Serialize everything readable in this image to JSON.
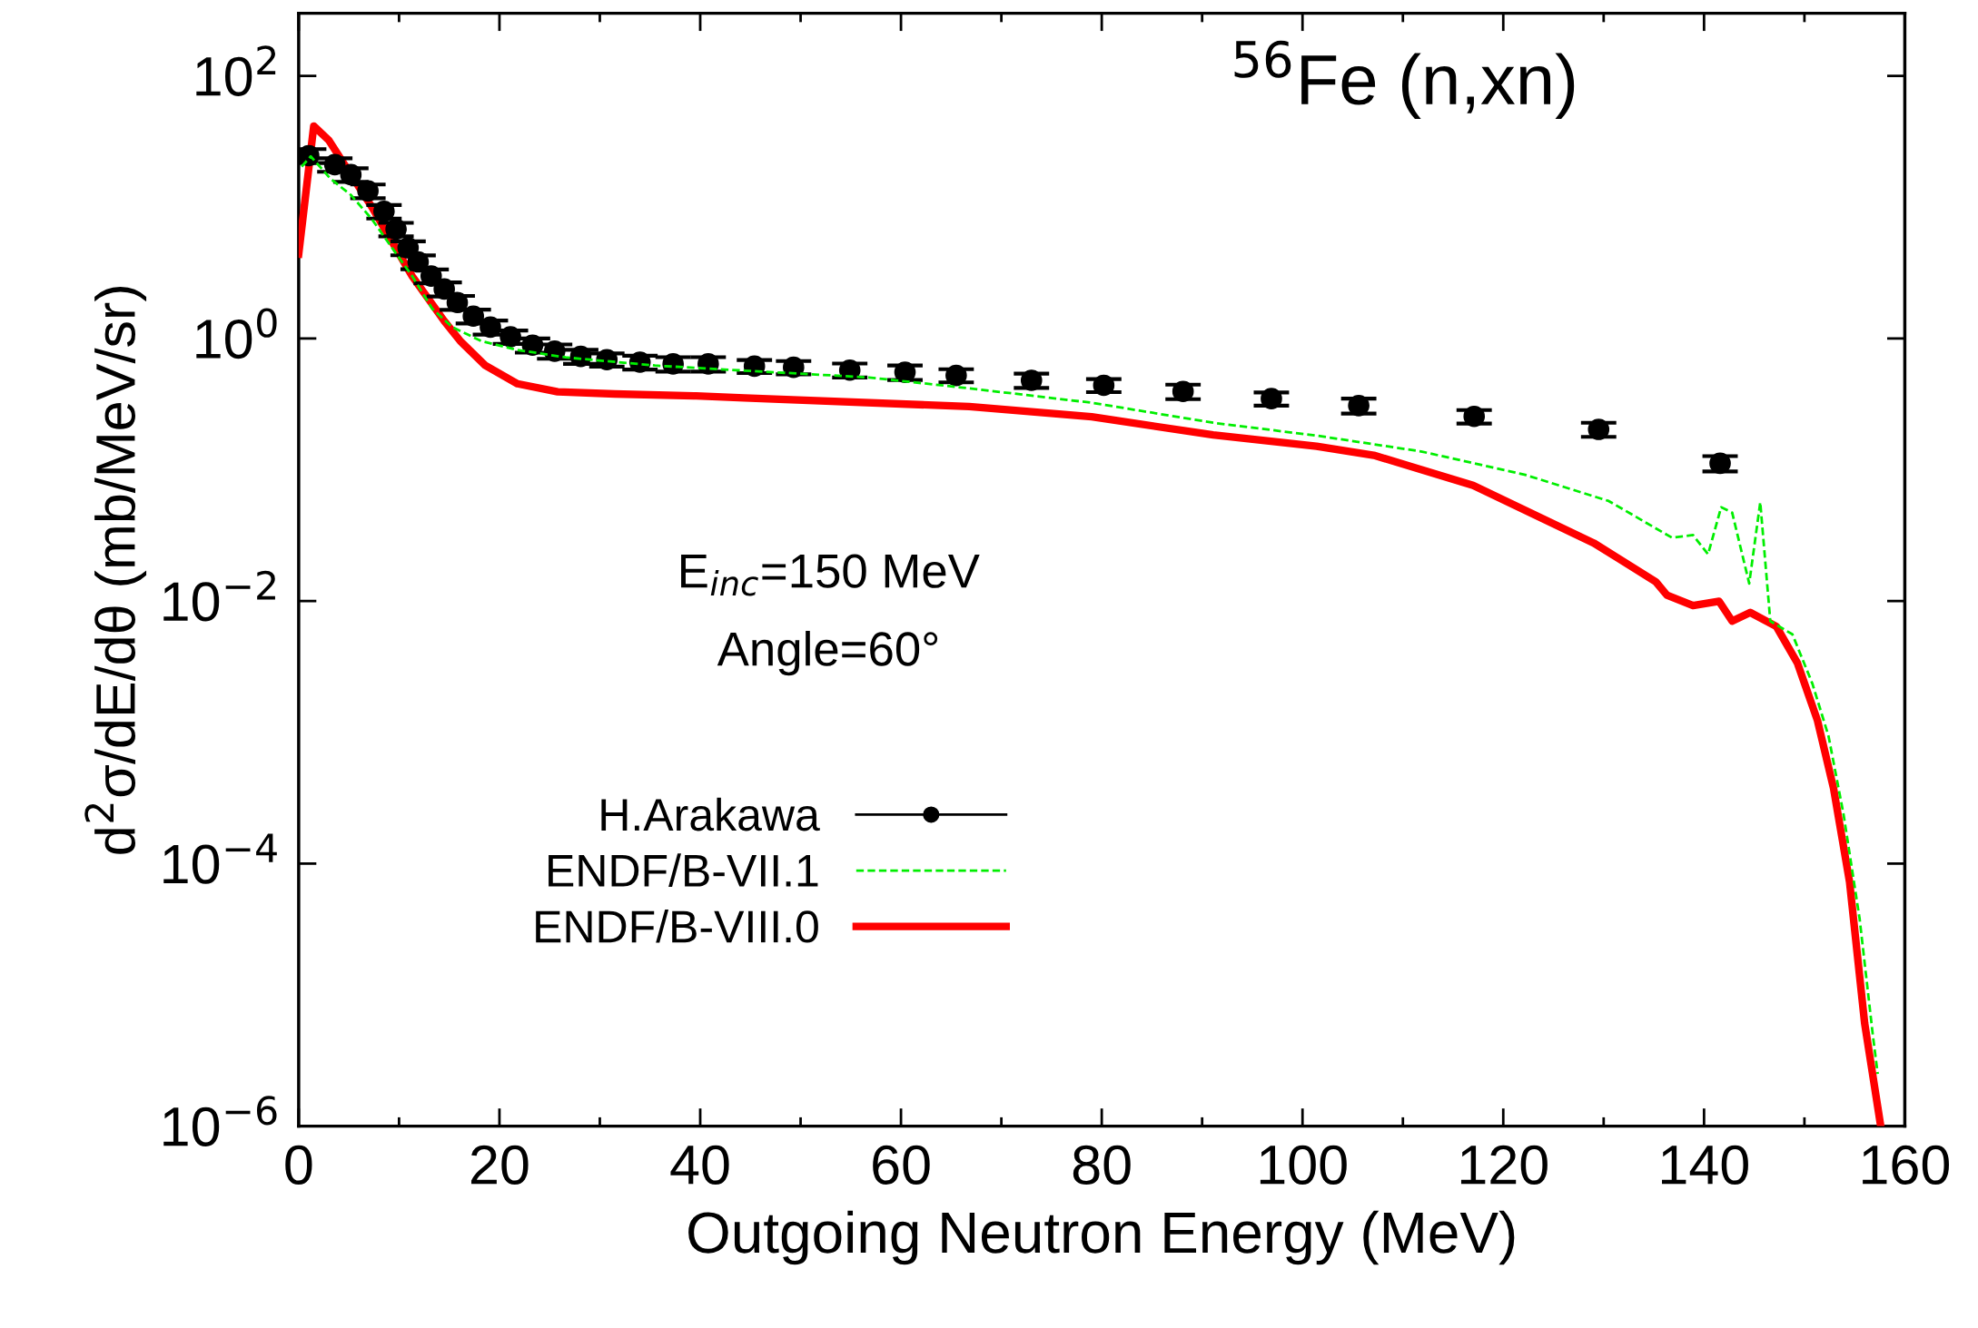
{
  "chart_data": {
    "type": "line",
    "xlabel": "Outgoing Neutron Energy (MeV)",
    "ylabel": "d$^{2}$σ/dE/dθ (mb/MeV/sr)",
    "annotations": [
      "$^{56}$Fe (n,xn)",
      "E$_{inc}$=150 MeV",
      "Angle=60°"
    ],
    "log": "y",
    "xlim": [
      0,
      160
    ],
    "ylim": [
      1e-06,
      300
    ],
    "xticks": [
      0,
      {
        "value": 10,
        "label": null
      },
      20,
      {
        "value": 30,
        "label": null
      },
      40,
      {
        "value": 50,
        "label": null
      },
      60,
      {
        "value": 70,
        "label": null
      },
      80,
      {
        "value": 90,
        "label": null
      },
      100,
      {
        "value": 110,
        "label": null
      },
      120,
      {
        "value": 130,
        "label": null
      },
      140,
      {
        "value": 150,
        "label": null
      },
      160
    ],
    "yticks": [
      {
        "value": 1e-06,
        "label": "10$^{−6}$"
      },
      {
        "value": 0.0001,
        "label": "10$^{−4}$"
      },
      {
        "value": 0.01,
        "label": "10$^{−2}$"
      },
      {
        "value": 1,
        "label": "10$^{0}$"
      },
      {
        "value": 100,
        "label": "10$^{2}$"
      }
    ],
    "grid": false,
    "legend": "bottom left",
    "series": [
      {
        "name": "H.Arakawa",
        "type": "scatter",
        "color": "#000000",
        "marker": "circle",
        "x": [
          1.0,
          3.6,
          5.2,
          6.9,
          8.5,
          9.7,
          10.9,
          11.9,
          13.2,
          14.5,
          15.8,
          17.4,
          19.1,
          21.1,
          23.3,
          25.5,
          28.1,
          30.7,
          34.0,
          37.3,
          40.8,
          45.4,
          49.3,
          54.9,
          60.4,
          65.5,
          73.0,
          80.2,
          88.1,
          96.9,
          105.6,
          117.1,
          129.5,
          141.6
        ],
        "values": [
          24.7,
          21.1,
          17.7,
          13.3,
          9.3,
          6.8,
          4.9,
          3.83,
          2.99,
          2.38,
          1.88,
          1.48,
          1.22,
          1.03,
          0.89,
          0.8,
          0.73,
          0.69,
          0.66,
          0.64,
          0.64,
          0.615,
          0.603,
          0.574,
          0.553,
          0.523,
          0.48,
          0.44,
          0.395,
          0.348,
          0.308,
          0.255,
          0.203,
          0.112
        ],
        "errors": [
          3.0,
          2.5,
          2.1,
          1.6,
          1.1,
          0.8,
          0.6,
          0.46,
          0.36,
          0.29,
          0.23,
          0.18,
          0.15,
          0.12,
          0.11,
          0.1,
          0.09,
          0.08,
          0.08,
          0.08,
          0.08,
          0.07,
          0.07,
          0.07,
          0.07,
          0.06,
          0.06,
          0.05,
          0.05,
          0.04,
          0.04,
          0.03,
          0.025,
          0.015
        ]
      },
      {
        "name": "ENDF/B-VII.1",
        "color": "#00ee00",
        "line_style": "dashed",
        "x": [
          0.3,
          1.2,
          3.2,
          5.2,
          7.3,
          9.3,
          11.3,
          13.3,
          15.3,
          18.2,
          21.8,
          26.6,
          35.5,
          44.4,
          56.8,
          66.8,
          79.0,
          91.1,
          101.4,
          111.8,
          122.2,
          130.5,
          136.8,
          138.9,
          140.4,
          141.7,
          142.8,
          144.5,
          145.6,
          146.6,
          148.8,
          150.8,
          152.4,
          153.9,
          155.5,
          156.8,
          157.3
        ],
        "values": [
          20.4,
          24.4,
          16.4,
          12.4,
          8.09,
          4.91,
          2.99,
          1.69,
          1.22,
          0.955,
          0.817,
          0.718,
          0.622,
          0.569,
          0.505,
          0.417,
          0.324,
          0.228,
          0.182,
          0.138,
          0.0914,
          0.0578,
          0.0304,
          0.0318,
          0.0227,
          0.0518,
          0.0472,
          0.0136,
          0.0566,
          0.00703,
          0.00558,
          0.00234,
          0.000935,
          0.000237,
          3.79e-05,
          5.05e-06,
          2.5e-06
        ]
      },
      {
        "name": "ENDF/B-VIII.0",
        "color": "#ff0000",
        "line_style": "solid",
        "x": [
          0,
          1.5,
          3.0,
          7.3,
          11.3,
          14.5,
          16.1,
          18.6,
          21.8,
          25.8,
          31.5,
          39.6,
          44.4,
          66.8,
          79.0,
          91.1,
          101.4,
          107.1,
          117.0,
          129.0,
          135.2,
          136.3,
          138.9,
          141.5,
          142.8,
          144.6,
          147.2,
          149.3,
          151.3,
          152.9,
          154.5,
          156.0,
          157.6
        ],
        "values": [
          4.4,
          41.5,
          32.4,
          10.0,
          2.99,
          1.36,
          0.955,
          0.622,
          0.452,
          0.392,
          0.378,
          0.365,
          0.352,
          0.303,
          0.253,
          0.184,
          0.151,
          0.129,
          0.076,
          0.0277,
          0.014,
          0.0111,
          0.00925,
          0.00995,
          0.00703,
          0.00818,
          0.00641,
          0.00337,
          0.00123,
          0.000375,
          7.21e-05,
          6.07e-06,
          1e-06
        ]
      }
    ]
  }
}
